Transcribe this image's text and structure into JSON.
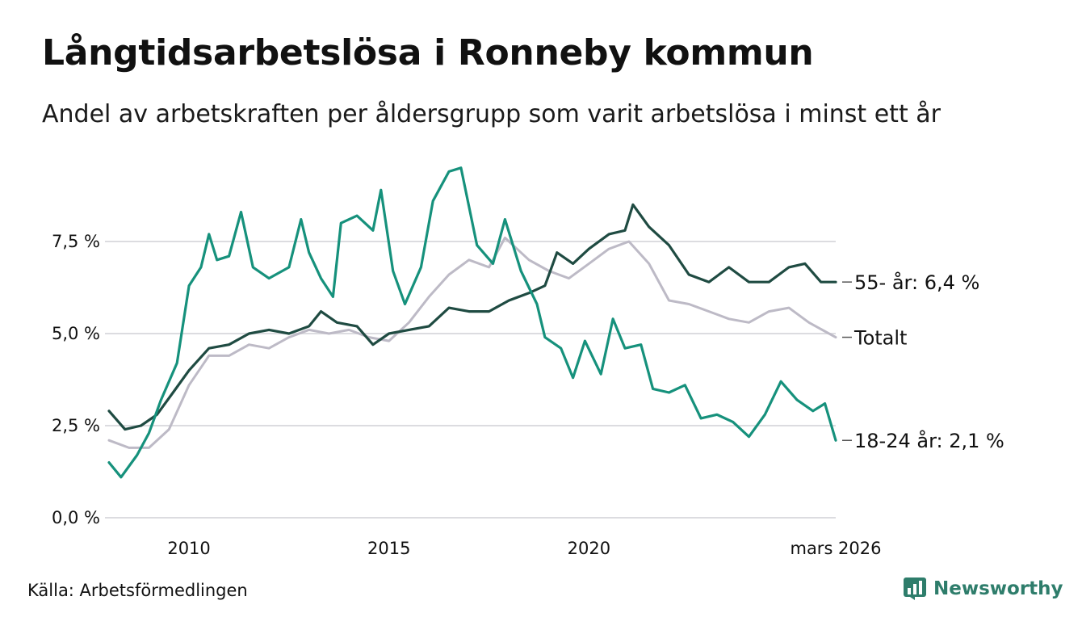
{
  "header": {
    "title": "Långtidsarbetslösa i Ronneby kommun",
    "subtitle": "Andel av arbetskraften per åldersgrupp som varit arbetslösa i minst ett år"
  },
  "footer": {
    "source": "Källa: Arbetsförmedlingen",
    "brand": "Newsworthy"
  },
  "colors": {
    "young": "#16917c",
    "older": "#1f4b42",
    "total": "#bdbac6",
    "grid": "#dcdce0",
    "brand": "#2e7d6b"
  },
  "chart_data": {
    "type": "line",
    "title": "Långtidsarbetslösa i Ronneby kommun",
    "xlabel": "",
    "ylabel": "",
    "xlim": [
      2008.0,
      2026.17
    ],
    "ylim": [
      0,
      10
    ],
    "grid": true,
    "y_ticks": [
      {
        "value": 0,
        "label": "0,0 %"
      },
      {
        "value": 2.5,
        "label": "2,5 %"
      },
      {
        "value": 5,
        "label": "5,0 %"
      },
      {
        "value": 7.5,
        "label": "7,5 %"
      }
    ],
    "x_ticks": [
      {
        "value": 2010,
        "label": "2010"
      },
      {
        "value": 2015,
        "label": "2015"
      },
      {
        "value": 2020,
        "label": "2020"
      },
      {
        "value": 2026.17,
        "label": "mars 2026"
      }
    ],
    "series": [
      {
        "key": "total",
        "name": "Totalt",
        "end_label": "Totalt",
        "points": [
          [
            2008.0,
            2.1
          ],
          [
            2008.5,
            1.9
          ],
          [
            2009.0,
            1.9
          ],
          [
            2009.5,
            2.4
          ],
          [
            2010.0,
            3.6
          ],
          [
            2010.5,
            4.4
          ],
          [
            2011.0,
            4.4
          ],
          [
            2011.5,
            4.7
          ],
          [
            2012.0,
            4.6
          ],
          [
            2012.5,
            4.9
          ],
          [
            2013.0,
            5.1
          ],
          [
            2013.5,
            5.0
          ],
          [
            2014.0,
            5.1
          ],
          [
            2014.5,
            4.9
          ],
          [
            2015.0,
            4.8
          ],
          [
            2015.5,
            5.3
          ],
          [
            2016.0,
            6.0
          ],
          [
            2016.5,
            6.6
          ],
          [
            2017.0,
            7.0
          ],
          [
            2017.5,
            6.8
          ],
          [
            2017.9,
            7.6
          ],
          [
            2018.5,
            7.0
          ],
          [
            2019.0,
            6.7
          ],
          [
            2019.5,
            6.5
          ],
          [
            2020.0,
            6.9
          ],
          [
            2020.5,
            7.3
          ],
          [
            2021.0,
            7.5
          ],
          [
            2021.5,
            6.9
          ],
          [
            2022.0,
            5.9
          ],
          [
            2022.5,
            5.8
          ],
          [
            2023.0,
            5.6
          ],
          [
            2023.5,
            5.4
          ],
          [
            2024.0,
            5.3
          ],
          [
            2024.5,
            5.6
          ],
          [
            2025.0,
            5.7
          ],
          [
            2025.5,
            5.3
          ],
          [
            2026.17,
            4.9
          ]
        ]
      },
      {
        "key": "older",
        "name": "55- år",
        "end_label": "55- år: 6,4 %",
        "points": [
          [
            2008.0,
            2.9
          ],
          [
            2008.4,
            2.4
          ],
          [
            2008.8,
            2.5
          ],
          [
            2009.2,
            2.8
          ],
          [
            2009.6,
            3.4
          ],
          [
            2010.0,
            4.0
          ],
          [
            2010.5,
            4.6
          ],
          [
            2011.0,
            4.7
          ],
          [
            2011.5,
            5.0
          ],
          [
            2012.0,
            5.1
          ],
          [
            2012.5,
            5.0
          ],
          [
            2013.0,
            5.2
          ],
          [
            2013.3,
            5.6
          ],
          [
            2013.7,
            5.3
          ],
          [
            2014.2,
            5.2
          ],
          [
            2014.6,
            4.7
          ],
          [
            2015.0,
            5.0
          ],
          [
            2015.5,
            5.1
          ],
          [
            2016.0,
            5.2
          ],
          [
            2016.5,
            5.7
          ],
          [
            2017.0,
            5.6
          ],
          [
            2017.5,
            5.6
          ],
          [
            2018.0,
            5.9
          ],
          [
            2018.5,
            6.1
          ],
          [
            2018.9,
            6.3
          ],
          [
            2019.2,
            7.2
          ],
          [
            2019.6,
            6.9
          ],
          [
            2020.0,
            7.3
          ],
          [
            2020.5,
            7.7
          ],
          [
            2020.9,
            7.8
          ],
          [
            2021.1,
            8.5
          ],
          [
            2021.5,
            7.9
          ],
          [
            2022.0,
            7.4
          ],
          [
            2022.5,
            6.6
          ],
          [
            2023.0,
            6.4
          ],
          [
            2023.5,
            6.8
          ],
          [
            2024.0,
            6.4
          ],
          [
            2024.5,
            6.4
          ],
          [
            2025.0,
            6.8
          ],
          [
            2025.4,
            6.9
          ],
          [
            2025.8,
            6.4
          ],
          [
            2026.17,
            6.4
          ]
        ]
      },
      {
        "key": "young",
        "name": "18-24 år",
        "end_label": "18-24 år: 2,1 %",
        "points": [
          [
            2008.0,
            1.5
          ],
          [
            2008.3,
            1.1
          ],
          [
            2008.7,
            1.7
          ],
          [
            2009.0,
            2.3
          ],
          [
            2009.3,
            3.2
          ],
          [
            2009.7,
            4.2
          ],
          [
            2010.0,
            6.3
          ],
          [
            2010.3,
            6.8
          ],
          [
            2010.5,
            7.7
          ],
          [
            2010.7,
            7.0
          ],
          [
            2011.0,
            7.1
          ],
          [
            2011.3,
            8.3
          ],
          [
            2011.6,
            6.8
          ],
          [
            2012.0,
            6.5
          ],
          [
            2012.5,
            6.8
          ],
          [
            2012.8,
            8.1
          ],
          [
            2013.0,
            7.2
          ],
          [
            2013.3,
            6.5
          ],
          [
            2013.6,
            6.0
          ],
          [
            2013.8,
            8.0
          ],
          [
            2014.2,
            8.2
          ],
          [
            2014.6,
            7.8
          ],
          [
            2014.8,
            8.9
          ],
          [
            2015.1,
            6.7
          ],
          [
            2015.4,
            5.8
          ],
          [
            2015.8,
            6.8
          ],
          [
            2016.1,
            8.6
          ],
          [
            2016.5,
            9.4
          ],
          [
            2016.8,
            9.5
          ],
          [
            2017.2,
            7.4
          ],
          [
            2017.6,
            6.9
          ],
          [
            2017.9,
            8.1
          ],
          [
            2018.3,
            6.7
          ],
          [
            2018.7,
            5.8
          ],
          [
            2018.9,
            4.9
          ],
          [
            2019.3,
            4.6
          ],
          [
            2019.6,
            3.8
          ],
          [
            2019.9,
            4.8
          ],
          [
            2020.3,
            3.9
          ],
          [
            2020.6,
            5.4
          ],
          [
            2020.9,
            4.6
          ],
          [
            2021.3,
            4.7
          ],
          [
            2021.6,
            3.5
          ],
          [
            2022.0,
            3.4
          ],
          [
            2022.4,
            3.6
          ],
          [
            2022.8,
            2.7
          ],
          [
            2023.2,
            2.8
          ],
          [
            2023.6,
            2.6
          ],
          [
            2024.0,
            2.2
          ],
          [
            2024.4,
            2.8
          ],
          [
            2024.8,
            3.7
          ],
          [
            2025.2,
            3.2
          ],
          [
            2025.6,
            2.9
          ],
          [
            2025.9,
            3.1
          ],
          [
            2026.17,
            2.1
          ]
        ]
      }
    ]
  }
}
